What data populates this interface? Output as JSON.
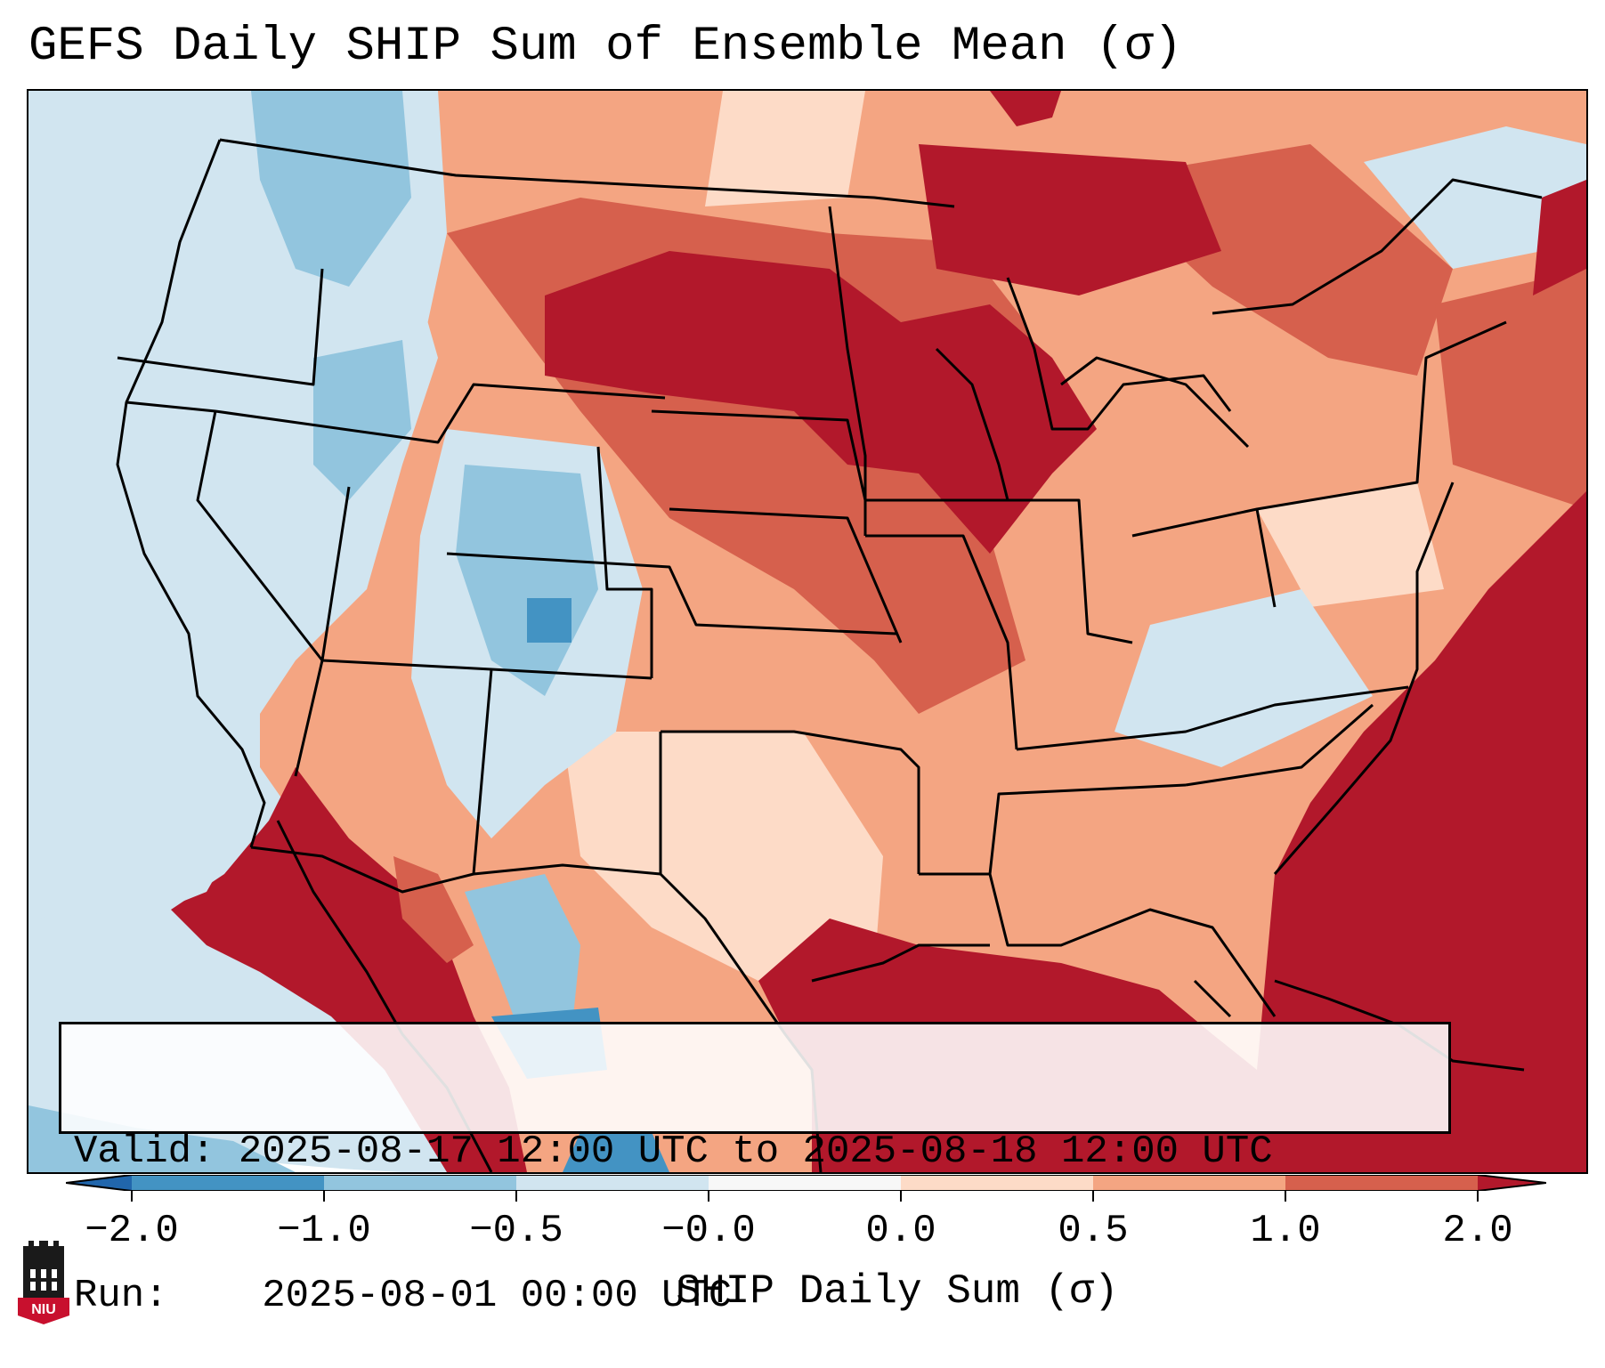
{
  "title": "GEFS Daily SHIP Sum of Ensemble Mean (σ)",
  "info": {
    "valid_label": "Valid:",
    "valid_value": "2025-08-17 12:00 UTC to 2025-08-18 12:00 UTC",
    "run_label": "Run:",
    "run_value": "2025-08-01 00:00 UTC"
  },
  "colorbar": {
    "label": "SHIP Daily Sum (σ)",
    "ticks": [
      "−2.0",
      "−1.0",
      "−0.5",
      "−0.0",
      "0.0",
      "0.5",
      "1.0",
      "2.0"
    ],
    "colors": {
      "under": "#2166ac",
      "bin_neg2_neg1": "#4393c3",
      "bin_neg1_neg05": "#92c5de",
      "bin_neg05_0": "#d1e5f0",
      "bin_0_0": "#f7f7f7",
      "bin_0_05": "#fddbc7",
      "bin_05_1": "#f4a582",
      "bin_1_2": "#d6604d",
      "over": "#b2182b"
    }
  },
  "map_regions": {
    "pacific_northwest": "below normal",
    "rockies": "below normal",
    "northern_plains_great_lakes": "well above normal",
    "gulf_of_mexico_atlantic": "well above normal",
    "southwest_mexico_coast": "well above normal"
  },
  "logo": {
    "text": "NIU"
  }
}
